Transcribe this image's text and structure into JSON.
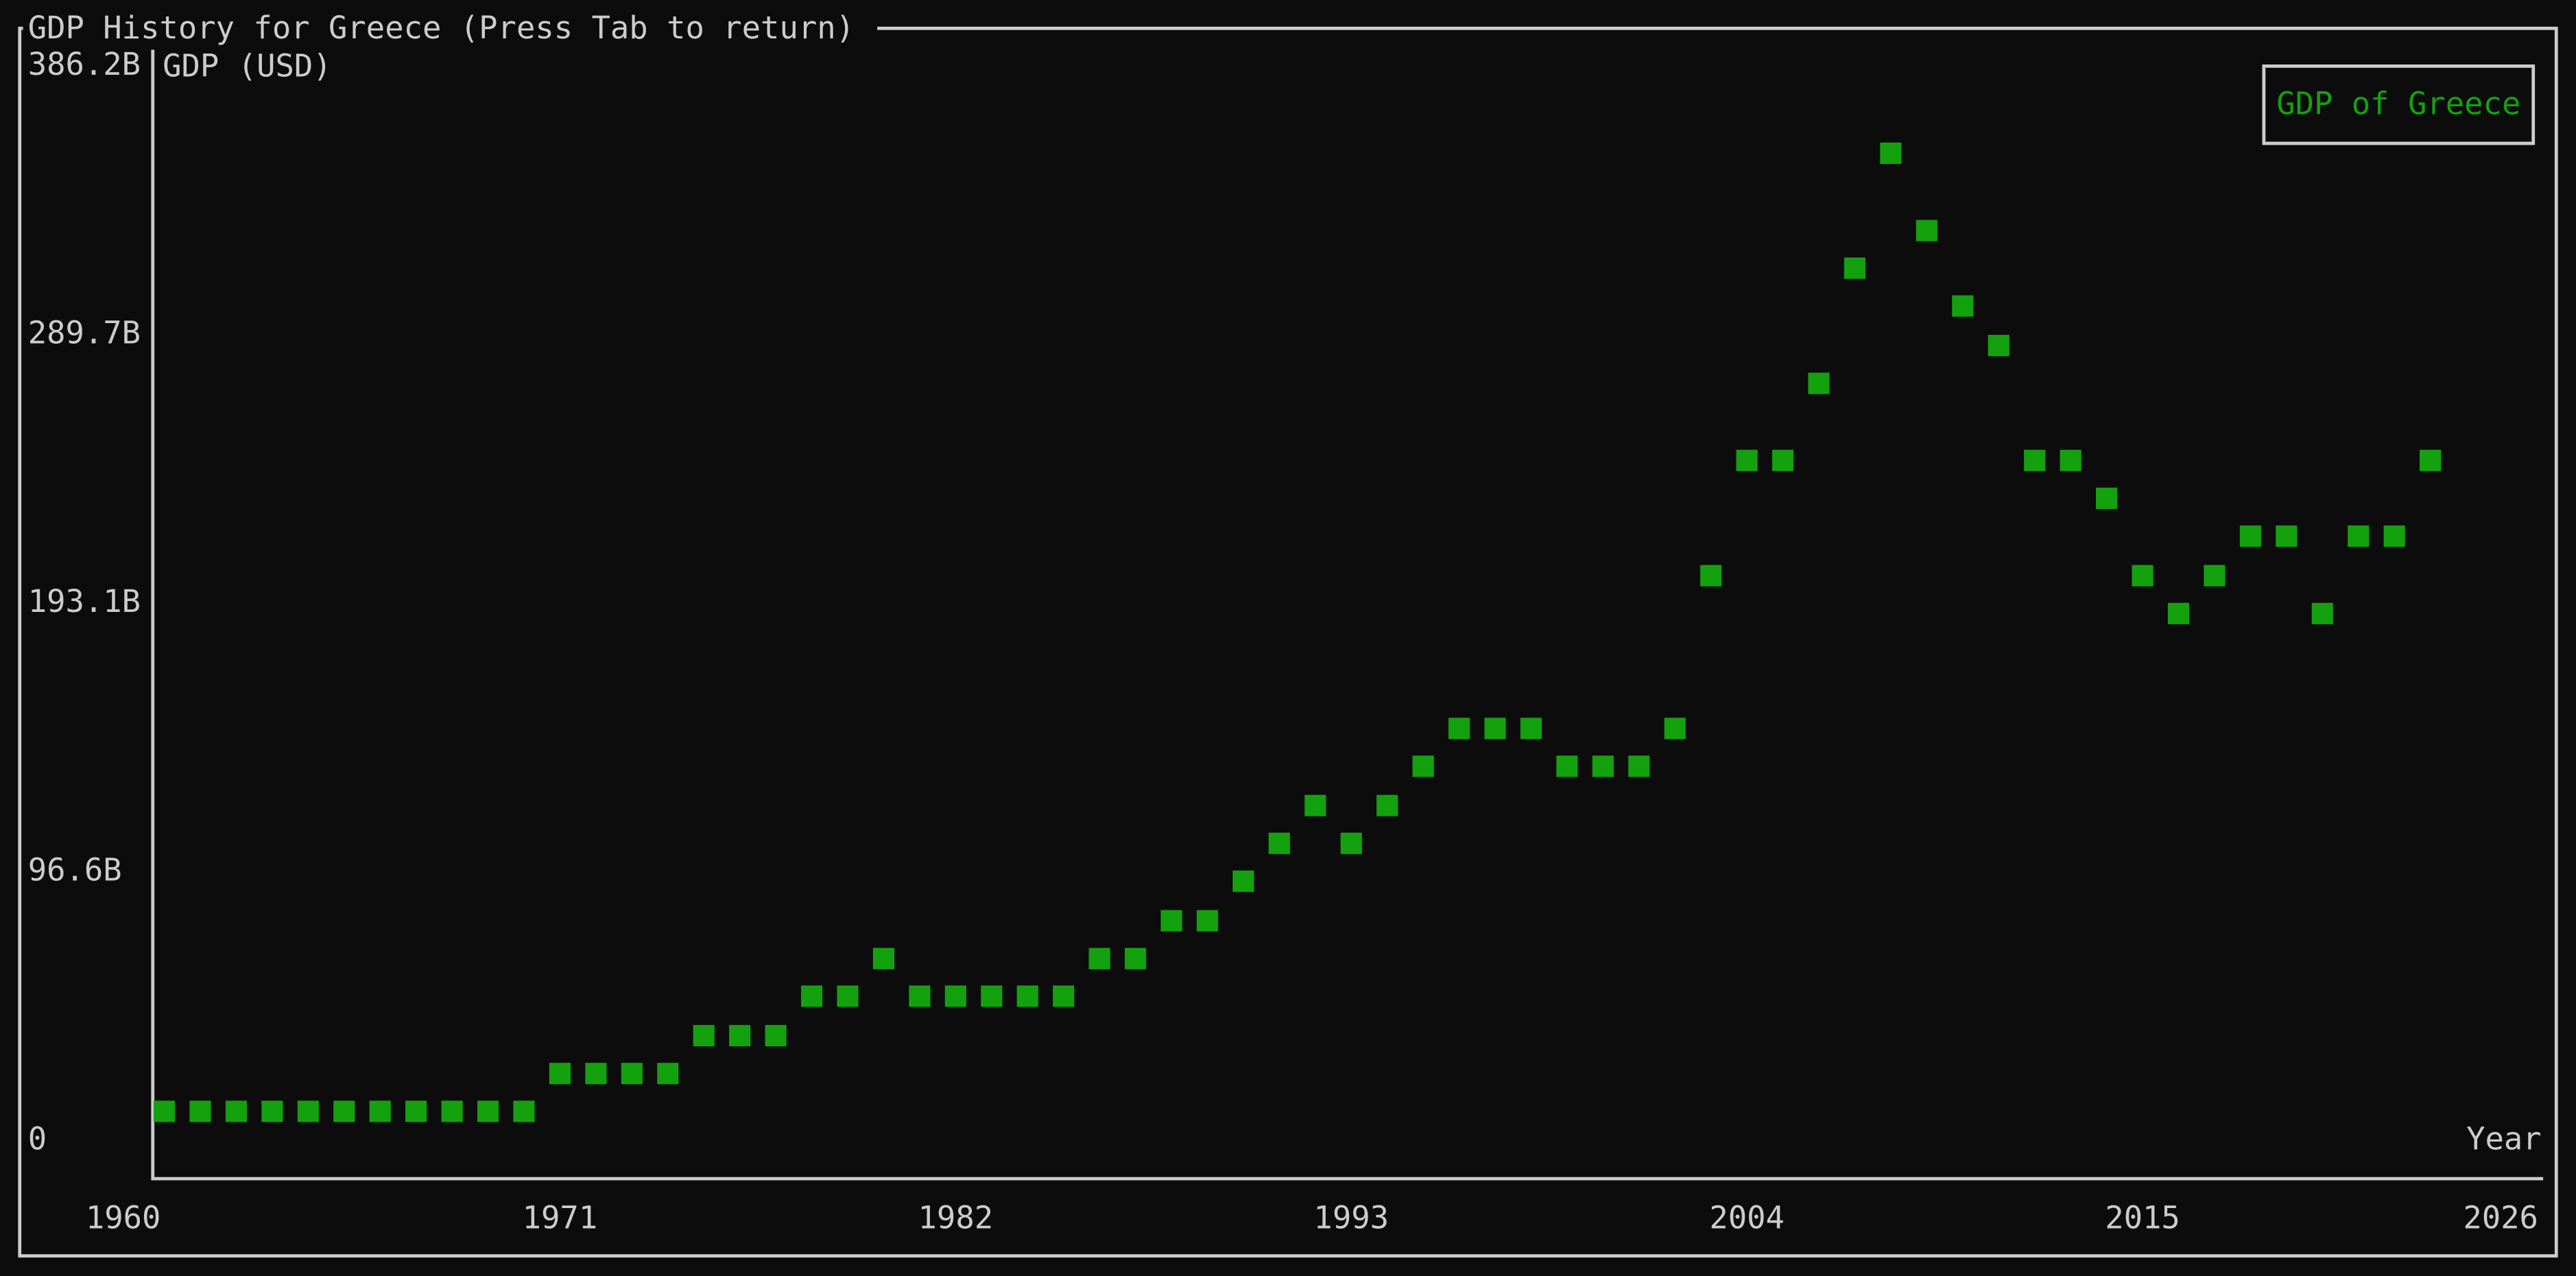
{
  "window_title": "GDP History for Greece (Press Tab to return)",
  "chart_data": {
    "type": "scatter",
    "y_label": "GDP (USD)",
    "x_label": "Year",
    "legend_position": "top-right",
    "xlim": [
      1960,
      2026
    ],
    "xticks": [
      1960,
      1971,
      1982,
      1993,
      2004,
      2015,
      2026
    ],
    "ylim": [
      0,
      386.2
    ],
    "yticks": [
      0,
      {
        "value": 96.6,
        "label": "96.6B"
      },
      {
        "value": 193.1,
        "label": "193.1B"
      },
      {
        "value": 289.7,
        "label": "289.7B"
      },
      {
        "value": 386.2,
        "label": "386.2B"
      }
    ],
    "series": [
      {
        "name": "GDP of Greece",
        "color": "#13a10e",
        "x": [
          1960,
          1961,
          1962,
          1963,
          1964,
          1965,
          1966,
          1967,
          1968,
          1969,
          1970,
          1971,
          1972,
          1973,
          1974,
          1975,
          1976,
          1977,
          1978,
          1979,
          1980,
          1981,
          1982,
          1983,
          1984,
          1985,
          1986,
          1987,
          1988,
          1989,
          1990,
          1991,
          1992,
          1993,
          1994,
          1995,
          1996,
          1997,
          1998,
          1999,
          2000,
          2001,
          2002,
          2003,
          2004,
          2005,
          2006,
          2007,
          2008,
          2009,
          2010,
          2011,
          2012,
          2013,
          2014,
          2015,
          2016,
          2017,
          2018,
          2019,
          2020,
          2021,
          2022,
          2023
        ],
        "values": [
          10.6,
          10.6,
          10.6,
          10.6,
          10.6,
          10.6,
          10.6,
          10.6,
          10.6,
          10.6,
          10.6,
          24.2,
          24.2,
          24.2,
          24.2,
          37.8,
          37.8,
          37.8,
          52.0,
          52.0,
          65.5,
          52.0,
          52.0,
          52.0,
          52.0,
          52.0,
          65.5,
          65.5,
          79.1,
          79.1,
          93.3,
          106.9,
          120.5,
          106.9,
          120.5,
          134.6,
          148.2,
          148.2,
          148.2,
          134.6,
          134.6,
          134.6,
          148.2,
          203.1,
          244.5,
          244.5,
          272.2,
          313.6,
          354.9,
          327.1,
          300.0,
          285.8,
          244.5,
          244.5,
          230.9,
          203.1,
          189.5,
          203.1,
          217.3,
          217.3,
          189.5,
          217.3,
          217.3,
          244.5
        ]
      }
    ]
  }
}
